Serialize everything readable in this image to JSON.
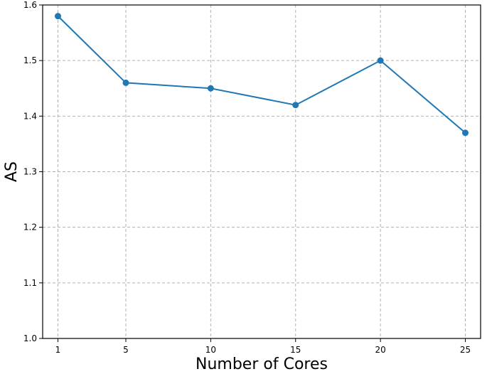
{
  "chart_data": {
    "type": "line",
    "x": [
      1,
      5,
      10,
      15,
      20,
      25
    ],
    "series": [
      {
        "values": [
          1.58,
          1.46,
          1.45,
          1.42,
          1.5,
          1.37
        ]
      }
    ],
    "xlabel": "Number of Cores",
    "ylabel": "AS",
    "xlim": [
      0.1,
      25.9
    ],
    "ylim": [
      1.0,
      1.6
    ],
    "xticks": [
      1,
      5,
      10,
      15,
      20,
      25
    ],
    "yticks": [
      1.0,
      1.1,
      1.2,
      1.3,
      1.4,
      1.5,
      1.6
    ],
    "grid": true,
    "line_color": "#1f77b4",
    "marker": "circle"
  }
}
